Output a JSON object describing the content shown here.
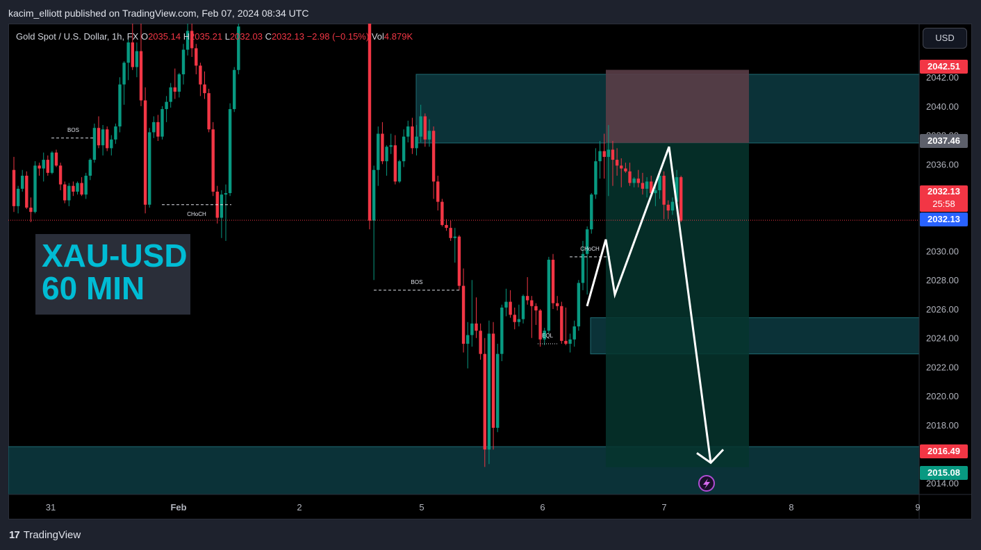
{
  "header": {
    "published": "kacim_elliott published on TradingView.com, Feb 07, 2024 08:34 UTC"
  },
  "legend": {
    "symbol": "Gold Spot / U.S. Dollar, 1h, FX",
    "o_label": "O",
    "o_value": "2035.14",
    "h_label": "H",
    "h_value": "2035.21",
    "l_label": "L",
    "l_value": "2032.03",
    "c_label": "C",
    "c_value": "2032.13",
    "change": "−2.98 (−0.15%)",
    "vol_label": "Vol",
    "vol_value": "4.879K"
  },
  "currency_button": "USD",
  "watermark": {
    "line1": "XAU-USD",
    "line2": "60 MIN"
  },
  "footer": {
    "brand": "TradingView",
    "logo_glyph": "17"
  },
  "price_tags": [
    {
      "value": "2042.51",
      "color": "#f23645"
    },
    {
      "value": "2037.46",
      "color": "#5d606b"
    },
    {
      "value": "2032.13",
      "sub": "25:58",
      "color": "#f23645"
    },
    {
      "value": "2032.13",
      "color": "#2962ff"
    },
    {
      "value": "2016.49",
      "color": "#f23645"
    },
    {
      "value": "2015.08",
      "color": "#089981"
    }
  ],
  "colors": {
    "up": "#089981",
    "down": "#f23645",
    "zone": "#0b3238",
    "accent": "#00bcd4",
    "target_zone": "#06352e",
    "stop_zone": "#5a3d47"
  },
  "chart_data": {
    "type": "candlestick",
    "title": "Gold Spot / U.S. Dollar, 1h, FX",
    "xlabel": "",
    "ylabel": "",
    "ylim": [
      2013.2,
      2045.7
    ],
    "y_ticks": [
      "2014.00",
      "2016.00",
      "2018.00",
      "2020.00",
      "2022.00",
      "2024.00",
      "2026.00",
      "2028.00",
      "2030.00",
      "2032.00",
      "2034.00",
      "2036.00",
      "2038.00",
      "2040.00",
      "2042.00"
    ],
    "x_ticks": [
      {
        "label": "31",
        "x": "2024-01-31"
      },
      {
        "label": "Feb",
        "x": "2024-02-01"
      },
      {
        "label": "2",
        "x": "2024-02-02"
      },
      {
        "label": "5",
        "x": "2024-02-05"
      },
      {
        "label": "6",
        "x": "2024-02-06"
      },
      {
        "label": "7",
        "x": "2024-02-07"
      },
      {
        "label": "8",
        "x": "2024-02-08"
      },
      {
        "label": "9",
        "x": "2024-02-09"
      }
    ],
    "current_price": 2032.13,
    "ohlc": [
      [
        2035.6,
        2036.5,
        2032.7,
        2033.1
      ],
      [
        2033.1,
        2034.5,
        2032.6,
        2034.3
      ],
      [
        2034.3,
        2035.6,
        2034.1,
        2035.2
      ],
      [
        2035.2,
        2035.5,
        2032.9,
        2033.0
      ],
      [
        2033.0,
        2033.7,
        2032.0,
        2032.7
      ],
      [
        2032.7,
        2036.2,
        2032.6,
        2035.9
      ],
      [
        2035.9,
        2036.1,
        2035.2,
        2035.7
      ],
      [
        2035.7,
        2036.8,
        2034.8,
        2036.3
      ],
      [
        2036.3,
        2036.6,
        2035.2,
        2035.4
      ],
      [
        2035.4,
        2036.9,
        2035.3,
        2036.8
      ],
      [
        2036.8,
        2037.0,
        2035.8,
        2035.9
      ],
      [
        2035.9,
        2036.1,
        2034.2,
        2034.6
      ],
      [
        2034.6,
        2034.8,
        2033.3,
        2033.5
      ],
      [
        2033.5,
        2034.7,
        2033.1,
        2034.5
      ],
      [
        2034.5,
        2034.8,
        2033.8,
        2034.1
      ],
      [
        2034.1,
        2034.8,
        2033.9,
        2034.7
      ],
      [
        2034.7,
        2035.1,
        2033.8,
        2033.9
      ],
      [
        2033.9,
        2035.4,
        2033.6,
        2035.2
      ],
      [
        2035.2,
        2036.4,
        2034.9,
        2036.3
      ],
      [
        2036.3,
        2038.8,
        2036.1,
        2038.5
      ],
      [
        2038.5,
        2039.3,
        2037.1,
        2037.3
      ],
      [
        2037.3,
        2038.7,
        2036.6,
        2038.4
      ],
      [
        2038.4,
        2038.6,
        2036.9,
        2037.1
      ],
      [
        2037.1,
        2038.0,
        2036.6,
        2037.7
      ],
      [
        2037.7,
        2038.8,
        2037.4,
        2038.6
      ],
      [
        2038.6,
        2042.0,
        2038.2,
        2041.5
      ],
      [
        2041.5,
        2043.1,
        2040.1,
        2043.0
      ],
      [
        2043.0,
        2044.6,
        2041.8,
        2044.4
      ],
      [
        2044.4,
        2045.7,
        2042.5,
        2042.7
      ],
      [
        2042.7,
        2044.4,
        2042.0,
        2043.8
      ],
      [
        2043.8,
        2045.7,
        2040.0,
        2040.4
      ],
      [
        2040.4,
        2041.3,
        2032.6,
        2033.2
      ],
      [
        2033.2,
        2038.5,
        2033.0,
        2038.2
      ],
      [
        2038.2,
        2039.3,
        2037.8,
        2038.9
      ],
      [
        2038.9,
        2039.4,
        2037.6,
        2037.9
      ],
      [
        2037.9,
        2040.0,
        2037.7,
        2039.8
      ],
      [
        2039.8,
        2040.7,
        2038.9,
        2040.3
      ],
      [
        2040.3,
        2041.6,
        2039.9,
        2041.3
      ],
      [
        2041.3,
        2042.6,
        2040.5,
        2041.0
      ],
      [
        2041.0,
        2042.3,
        2040.6,
        2042.2
      ],
      [
        2042.2,
        2044.3,
        2041.5,
        2043.9
      ],
      [
        2043.9,
        2045.7,
        2043.5,
        2045.2
      ],
      [
        2045.2,
        2045.7,
        2043.4,
        2044.0
      ],
      [
        2044.0,
        2044.3,
        2042.2,
        2042.8
      ],
      [
        2042.8,
        2043.0,
        2040.7,
        2041.5
      ],
      [
        2041.5,
        2042.4,
        2040.5,
        2040.9
      ],
      [
        2040.9,
        2041.2,
        2038.2,
        2038.4
      ],
      [
        2038.4,
        2038.9,
        2033.8,
        2034.1
      ],
      [
        2034.1,
        2034.5,
        2031.9,
        2032.3
      ],
      [
        2032.3,
        2034.2,
        2030.9,
        2033.9
      ],
      [
        2033.9,
        2034.6,
        2030.7,
        2034.0
      ],
      [
        2034.0,
        2040.2,
        2033.8,
        2039.8
      ],
      [
        2039.8,
        2042.7,
        2039.6,
        2042.5
      ],
      [
        2042.5,
        2045.7,
        2042.2,
        2045.5
      ],
      [
        2045.7,
        2045.7,
        2031.5,
        2032.1
      ],
      [
        2032.1,
        2035.9,
        2028.0,
        2035.6
      ],
      [
        2035.6,
        2038.6,
        2034.5,
        2038.1
      ],
      [
        2038.1,
        2038.9,
        2036.0,
        2036.2
      ],
      [
        2036.2,
        2037.3,
        2035.2,
        2037.2
      ],
      [
        2037.2,
        2038.1,
        2036.7,
        2037.3
      ],
      [
        2037.3,
        2038.0,
        2034.6,
        2034.8
      ],
      [
        2034.8,
        2036.3,
        2034.7,
        2036.2
      ],
      [
        2036.2,
        2038.4,
        2035.8,
        2037.9
      ],
      [
        2037.9,
        2039.0,
        2037.5,
        2038.6
      ],
      [
        2038.6,
        2039.2,
        2036.7,
        2037.1
      ],
      [
        2037.1,
        2038.7,
        2036.6,
        2037.9
      ],
      [
        2037.9,
        2040.1,
        2037.5,
        2039.3
      ],
      [
        2039.3,
        2039.5,
        2037.2,
        2037.7
      ],
      [
        2037.7,
        2039.1,
        2037.2,
        2038.3
      ],
      [
        2038.3,
        2038.6,
        2033.6,
        2034.8
      ],
      [
        2034.8,
        2035.2,
        2032.8,
        2033.4
      ],
      [
        2033.4,
        2033.6,
        2031.7,
        2031.8
      ],
      [
        2031.8,
        2032.2,
        2031.4,
        2031.6
      ],
      [
        2031.6,
        2032.1,
        2030.7,
        2030.9
      ],
      [
        2030.9,
        2031.6,
        2029.2,
        2031.0
      ],
      [
        2031.0,
        2031.1,
        2027.3,
        2027.6
      ],
      [
        2027.6,
        2028.8,
        2023.0,
        2023.6
      ],
      [
        2023.6,
        2025.1,
        2021.9,
        2024.2
      ],
      [
        2024.2,
        2028.0,
        2023.4,
        2025.0
      ],
      [
        2025.0,
        2026.8,
        2024.0,
        2024.5
      ],
      [
        2024.5,
        2025.0,
        2022.5,
        2022.9
      ],
      [
        2022.9,
        2024.0,
        2015.1,
        2016.3
      ],
      [
        2016.3,
        2025.2,
        2015.3,
        2024.3
      ],
      [
        2024.3,
        2025.1,
        2016.3,
        2017.8
      ],
      [
        2017.8,
        2023.6,
        2017.5,
        2022.9
      ],
      [
        2022.9,
        2026.3,
        2022.4,
        2026.1
      ],
      [
        2026.1,
        2027.4,
        2025.5,
        2026.5
      ],
      [
        2026.5,
        2027.3,
        2025.4,
        2025.6
      ],
      [
        2025.6,
        2026.1,
        2024.6,
        2025.1
      ],
      [
        2025.1,
        2026.3,
        2024.8,
        2025.3
      ],
      [
        2025.3,
        2027.0,
        2025.0,
        2026.9
      ],
      [
        2026.9,
        2028.2,
        2026.3,
        2026.6
      ],
      [
        2026.6,
        2026.9,
        2024.0,
        2026.2
      ],
      [
        2026.2,
        2026.4,
        2024.9,
        2025.9
      ],
      [
        2025.9,
        2026.0,
        2023.4,
        2023.9
      ],
      [
        2023.9,
        2024.7,
        2023.5,
        2024.5
      ],
      [
        2024.5,
        2029.6,
        2024.3,
        2029.4
      ],
      [
        2029.4,
        2029.8,
        2026.0,
        2026.4
      ],
      [
        2026.4,
        2026.9,
        2025.9,
        2026.2
      ],
      [
        2026.2,
        2026.5,
        2023.6,
        2023.8
      ],
      [
        2023.8,
        2026.1,
        2023.5,
        2023.6
      ],
      [
        2023.6,
        2024.3,
        2023.0,
        2023.9
      ],
      [
        2023.9,
        2025.2,
        2023.4,
        2024.8
      ],
      [
        2024.8,
        2028.0,
        2024.5,
        2027.8
      ],
      [
        2027.8,
        2030.7,
        2027.3,
        2029.8
      ],
      [
        2029.8,
        2031.7,
        2027.0,
        2031.5
      ],
      [
        2031.5,
        2034.0,
        2031.2,
        2033.9
      ],
      [
        2033.9,
        2037.1,
        2033.6,
        2036.2
      ],
      [
        2036.2,
        2037.6,
        2035.0,
        2036.9
      ],
      [
        2036.9,
        2038.1,
        2035.0,
        2036.5
      ],
      [
        2036.5,
        2038.7,
        2033.8,
        2037.0
      ],
      [
        2037.0,
        2037.6,
        2034.5,
        2036.3
      ],
      [
        2036.3,
        2037.1,
        2035.2,
        2035.9
      ],
      [
        2035.9,
        2036.4,
        2034.4,
        2035.7
      ],
      [
        2035.7,
        2036.1,
        2035.4,
        2035.5
      ],
      [
        2035.5,
        2036.1,
        2034.5,
        2034.7
      ],
      [
        2034.7,
        2035.1,
        2034.4,
        2035.0
      ],
      [
        2035.0,
        2035.6,
        2034.4,
        2034.7
      ],
      [
        2034.7,
        2035.4,
        2033.9,
        2034.3
      ],
      [
        2034.3,
        2035.1,
        2033.7,
        2034.8
      ],
      [
        2034.8,
        2035.2,
        2033.7,
        2034.0
      ],
      [
        2034.0,
        2034.5,
        2033.1,
        2034.2
      ],
      [
        2034.2,
        2035.5,
        2033.6,
        2035.2
      ],
      [
        2035.2,
        2035.5,
        2032.2,
        2033.2
      ],
      [
        2033.2,
        2033.5,
        2032.2,
        2032.8
      ],
      [
        2032.8,
        2033.7,
        2032.5,
        2033.4
      ],
      [
        2033.4,
        2035.6,
        2033.2,
        2035.1
      ],
      [
        2035.1,
        2035.2,
        2032.0,
        2032.1
      ]
    ],
    "annotations": [
      {
        "text": "BOS",
        "price": 2037.8
      },
      {
        "text": "CHoCH",
        "price": 2033.2
      },
      {
        "text": "BOS",
        "price": 2027.3
      },
      {
        "text": "EQL",
        "price": 2023.6
      },
      {
        "text": "CHoCH",
        "price": 2029.6
      }
    ],
    "zones": [
      {
        "name": "supply-zone",
        "from": 2037.46,
        "to": 2042.2
      },
      {
        "name": "demand-zone",
        "from": 2022.9,
        "to": 2025.4
      },
      {
        "name": "lower-demand-zone",
        "from": 2013.2,
        "to": 2016.5
      }
    ],
    "position": {
      "type": "short",
      "entry": 2037.46,
      "stop": 2042.51,
      "target": 2015.08
    },
    "projection_path": [
      [
        2026.2,
        2030.8
      ],
      [
        2027.0,
        2037.2
      ],
      [
        2015.1
      ]
    ]
  }
}
